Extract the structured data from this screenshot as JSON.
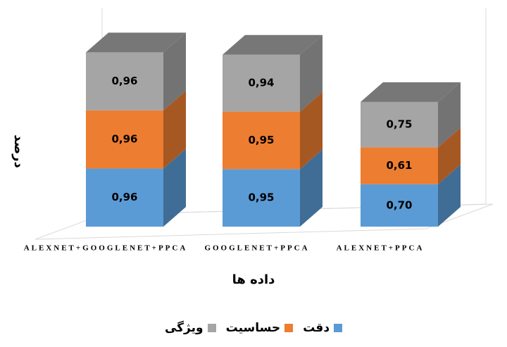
{
  "chart_data": {
    "type": "bar",
    "stacked": true,
    "categories": [
      "ALEXNET+GOOGLENET+PPCA",
      "GOOGLENET+PPCA",
      "ALEXNET+PPCA"
    ],
    "series": [
      {
        "name": "دقت",
        "color": "#5b9bd5",
        "values": [
          0.96,
          0.95,
          0.7
        ],
        "value_labels": [
          "0,96",
          "0,95",
          "0,70"
        ]
      },
      {
        "name": "حساسیت",
        "color": "#ed7d31",
        "values": [
          0.96,
          0.95,
          0.61
        ],
        "value_labels": [
          "0,96",
          "0,95",
          "0,61"
        ]
      },
      {
        "name": "ویژگی",
        "color": "#a5a5a5",
        "values": [
          0.96,
          0.94,
          0.75
        ],
        "value_labels": [
          "0,96",
          "0,94",
          "0,75"
        ]
      }
    ],
    "x_label": "داده ها",
    "y_label": "درصد",
    "legend": "bottom"
  }
}
